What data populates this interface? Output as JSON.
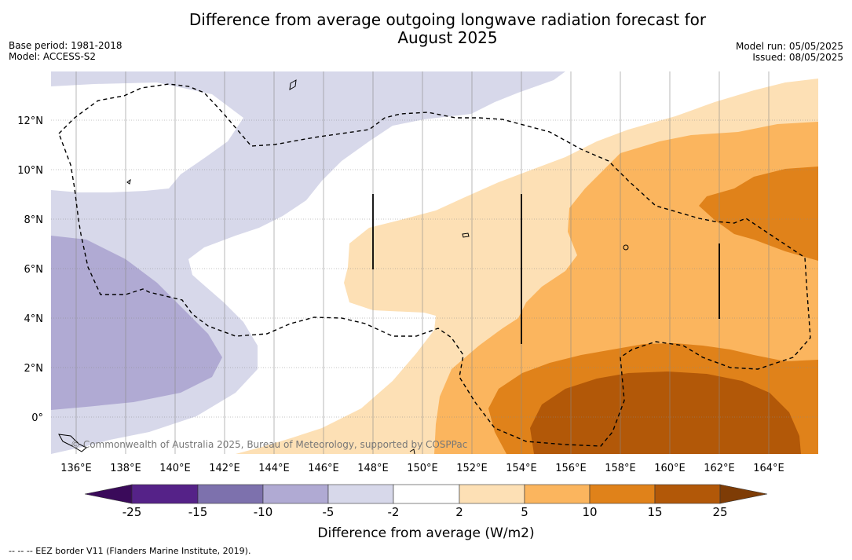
{
  "title_line1": "Difference from average outgoing longwave radiation forecast for",
  "title_line2": "August 2025",
  "base_period": "Base period: 1981-2018",
  "model": "Model: ACCESS-S2",
  "model_run": "Model run: 05/05/2025",
  "issued": "Issued: 08/05/2025",
  "lon_labels": [
    "136°E",
    "138°E",
    "140°E",
    "142°E",
    "144°E",
    "146°E",
    "148°E",
    "150°E",
    "152°E",
    "154°E",
    "156°E",
    "158°E",
    "160°E",
    "162°E",
    "164°E"
  ],
  "lat_labels": [
    "12°N",
    "10°N",
    "8°N",
    "6°N",
    "4°N",
    "2°N",
    "0°"
  ],
  "copyright": "© Commonwealth of Australia 2025, Bureau of Meteorology, supported by COSPPac",
  "colorbar": {
    "ticks": [
      "-25",
      "-15",
      "-10",
      "-5",
      "-2",
      "2",
      "5",
      "10",
      "15",
      "25"
    ],
    "colors": [
      "#3a0a5a",
      "#552288",
      "#7d71ad",
      "#b0aad3",
      "#d7d8ea",
      "#ffffff",
      "#fde0b5",
      "#fbb55e",
      "#e0821a",
      "#b25808",
      "#7e3c06"
    ],
    "title": "Difference from average (W/m2)"
  },
  "footer": "--  --  -- EEZ border V11 (Flanders Marine Institute, 2019)."
}
